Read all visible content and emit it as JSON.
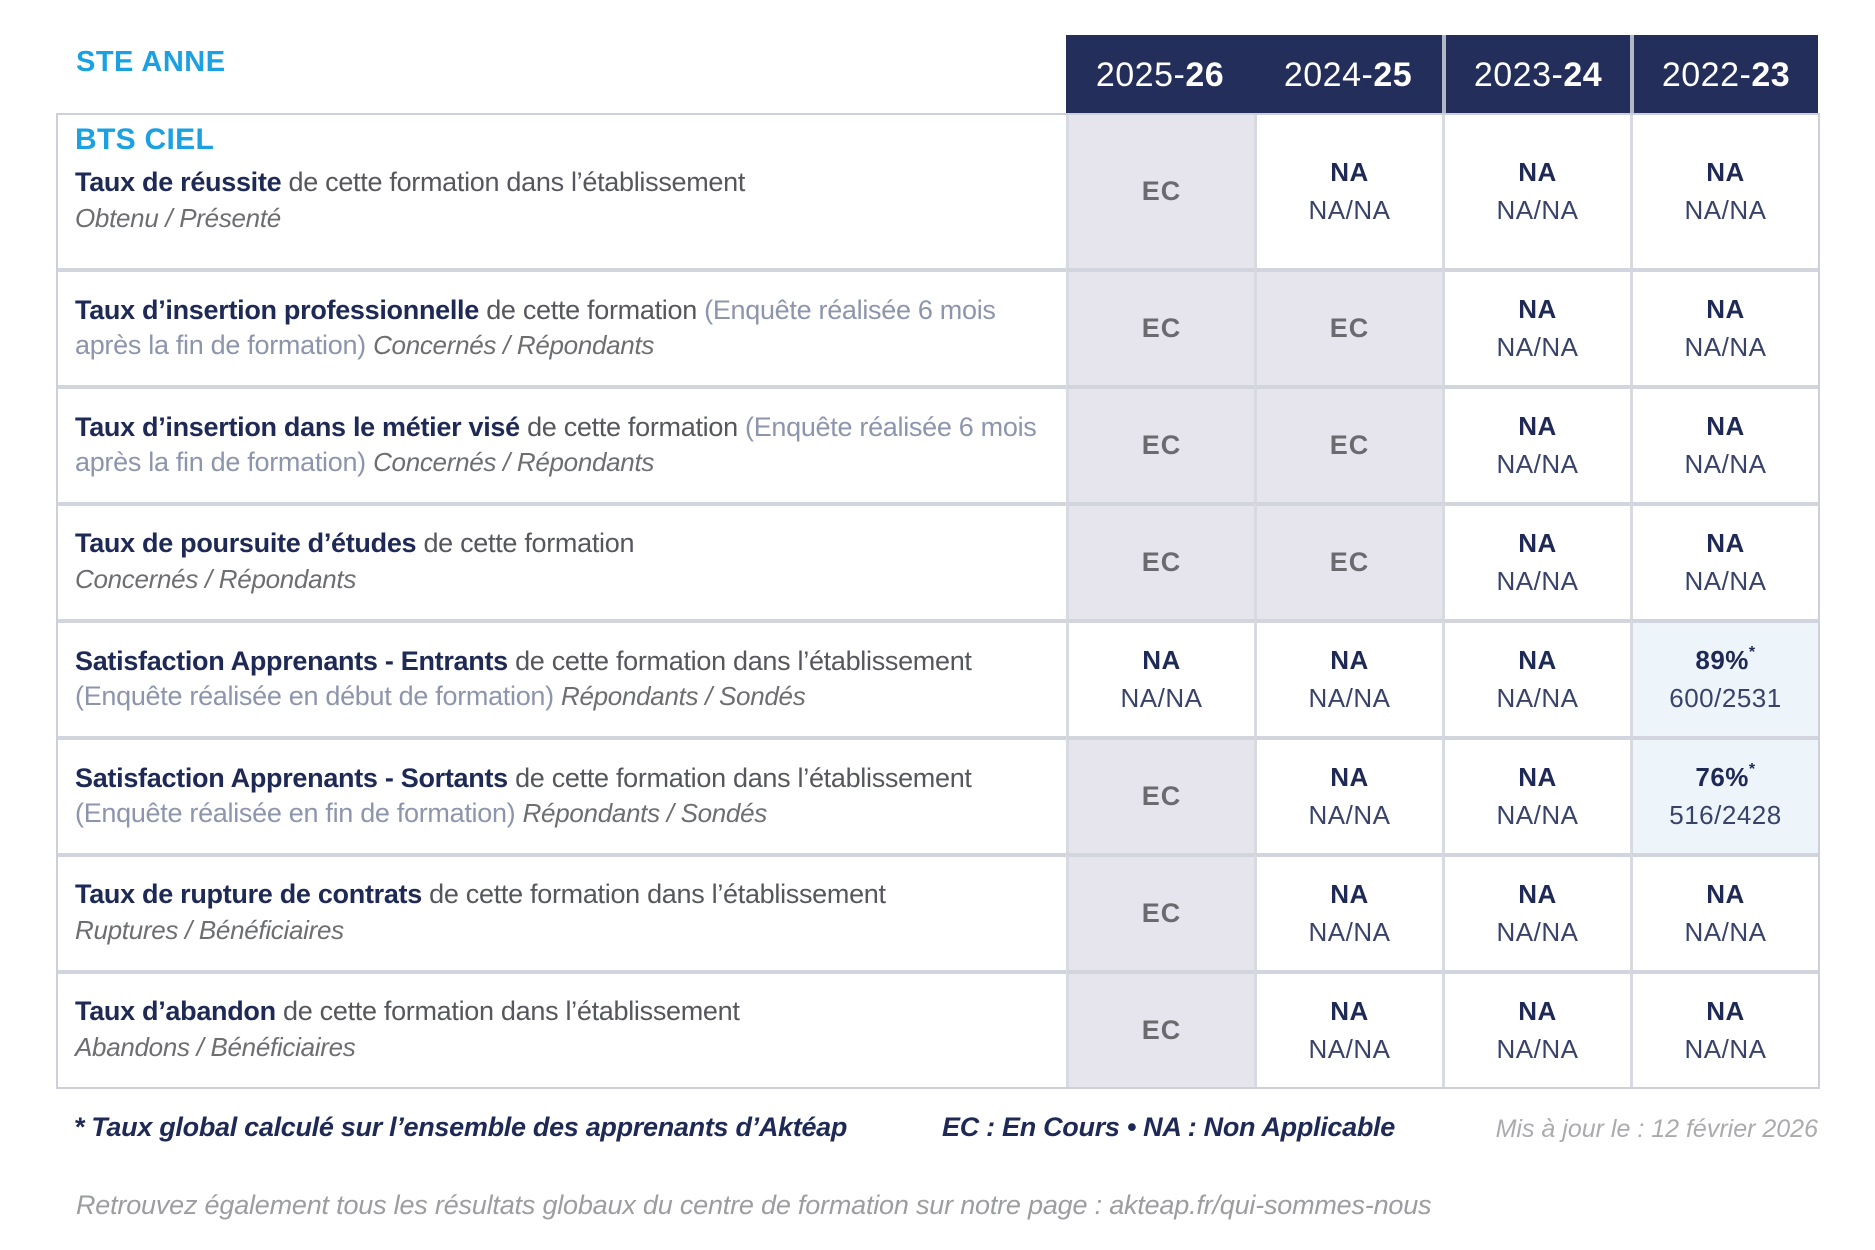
{
  "brand": "STE ANNE",
  "program": "BTS CIEL",
  "columns": [
    {
      "prefix": "2025-",
      "suffix": "26"
    },
    {
      "prefix": "2024-",
      "suffix": "25"
    },
    {
      "prefix": "2023-",
      "suffix": "24"
    },
    {
      "prefix": "2022-",
      "suffix": "23"
    }
  ],
  "rows": [
    {
      "title": "Taux de réussite",
      "desc": "de cette formation dans l’établissement",
      "sub": "Obtenu / Présenté",
      "cells": [
        {
          "style": "ec",
          "value": "EC"
        },
        {
          "style": "na",
          "value": "NA",
          "fraction": "NA/NA"
        },
        {
          "style": "na",
          "value": "NA",
          "fraction": "NA/NA"
        },
        {
          "style": "na",
          "value": "NA",
          "fraction": "NA/NA"
        }
      ]
    },
    {
      "title": "Taux d’insertion professionnelle",
      "desc": "de cette formation",
      "paren": "(Enquête réalisée 6 mois après la fin de formation)",
      "sub": "Concernés / Répondants",
      "cells": [
        {
          "style": "ec",
          "value": "EC"
        },
        {
          "style": "ec",
          "value": "EC"
        },
        {
          "style": "na",
          "value": "NA",
          "fraction": "NA/NA"
        },
        {
          "style": "na",
          "value": "NA",
          "fraction": "NA/NA"
        }
      ]
    },
    {
      "title": "Taux d’insertion dans le métier visé",
      "desc": "de cette formation",
      "paren": "(Enquête réalisée 6 mois après la fin de formation)",
      "sub": "Concernés / Répondants",
      "cells": [
        {
          "style": "ec",
          "value": "EC"
        },
        {
          "style": "ec",
          "value": "EC"
        },
        {
          "style": "na",
          "value": "NA",
          "fraction": "NA/NA"
        },
        {
          "style": "na",
          "value": "NA",
          "fraction": "NA/NA"
        }
      ]
    },
    {
      "title": "Taux de poursuite d’études",
      "desc": "de cette formation",
      "sub": "Concernés / Répondants",
      "cells": [
        {
          "style": "ec",
          "value": "EC"
        },
        {
          "style": "ec",
          "value": "EC"
        },
        {
          "style": "na",
          "value": "NA",
          "fraction": "NA/NA"
        },
        {
          "style": "na",
          "value": "NA",
          "fraction": "NA/NA"
        }
      ]
    },
    {
      "title": "Satisfaction Apprenants - Entrants",
      "desc": "de cette formation dans l’établissement",
      "paren": "(Enquête réalisée en début de formation)",
      "sub": "Répondants / Sondés",
      "cells": [
        {
          "style": "na",
          "value": "NA",
          "fraction": "NA/NA"
        },
        {
          "style": "na",
          "value": "NA",
          "fraction": "NA/NA"
        },
        {
          "style": "na",
          "value": "NA",
          "fraction": "NA/NA"
        },
        {
          "style": "pct",
          "value": "89%",
          "star": "*",
          "fraction": "600/2531"
        }
      ]
    },
    {
      "title": "Satisfaction Apprenants - Sortants",
      "desc": "de cette formation dans l’établissement",
      "paren": "(Enquête réalisée en fin de formation)",
      "sub": "Répondants / Sondés",
      "cells": [
        {
          "style": "ec",
          "value": "EC"
        },
        {
          "style": "na",
          "value": "NA",
          "fraction": "NA/NA"
        },
        {
          "style": "na",
          "value": "NA",
          "fraction": "NA/NA"
        },
        {
          "style": "pct",
          "value": "76%",
          "star": "*",
          "fraction": "516/2428"
        }
      ]
    },
    {
      "title": "Taux de rupture de contrats",
      "desc": "de cette formation dans l’établissement",
      "sub": "Ruptures / Bénéficiaires",
      "cells": [
        {
          "style": "ec",
          "value": "EC"
        },
        {
          "style": "na",
          "value": "NA",
          "fraction": "NA/NA"
        },
        {
          "style": "na",
          "value": "NA",
          "fraction": "NA/NA"
        },
        {
          "style": "na",
          "value": "NA",
          "fraction": "NA/NA"
        }
      ]
    },
    {
      "title": "Taux d’abandon",
      "desc": "de cette formation dans l’établissement",
      "sub": "Abandons / Bénéficiaires",
      "cells": [
        {
          "style": "ec",
          "value": "EC"
        },
        {
          "style": "na",
          "value": "NA",
          "fraction": "NA/NA"
        },
        {
          "style": "na",
          "value": "NA",
          "fraction": "NA/NA"
        },
        {
          "style": "na",
          "value": "NA",
          "fraction": "NA/NA"
        }
      ]
    }
  ],
  "footnote": {
    "star": "*",
    "text": "Taux global calculé sur l’ensemble des apprenants d’Aktéap",
    "legend": "EC : En Cours   •   NA : Non Applicable",
    "updated": "Mis à jour le : 12 février 2026"
  },
  "bottom_note": "Retrouvez également tous les résultats globaux du centre de formation sur notre page : akteap.fr/qui-sommes-nous"
}
